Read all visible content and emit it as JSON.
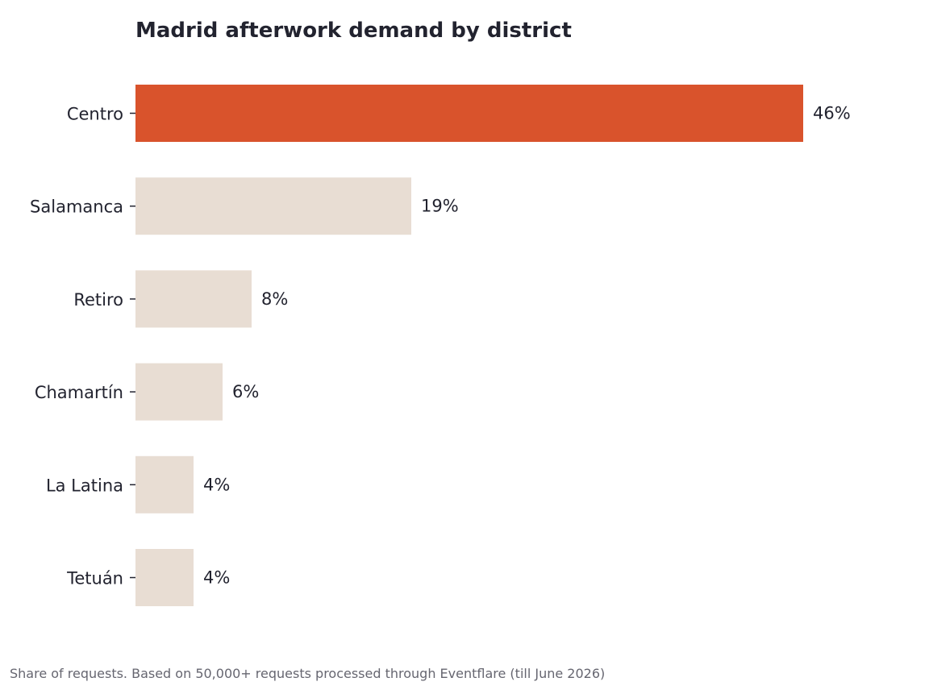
{
  "chart_data": {
    "type": "bar",
    "orientation": "horizontal",
    "title": "Madrid afterwork demand by district",
    "footnote": "Share of requests. Based on 50,000+ requests processed through Eventflare (till June 2026)",
    "categories": [
      "Centro",
      "Salamanca",
      "Retiro",
      "Chamartín",
      "La Latina",
      "Tetuán"
    ],
    "values": [
      46,
      19,
      8,
      6,
      4,
      4
    ],
    "value_labels": [
      "46%",
      "19%",
      "8%",
      "6%",
      "4%",
      "4%"
    ],
    "unit": "%",
    "xlim": [
      0,
      50
    ],
    "grid": false,
    "colors": {
      "highlight": "#d9532c",
      "default": "#e8ddd3",
      "text": "#22232f",
      "muted": "#666670"
    },
    "highlight_index": 0
  }
}
